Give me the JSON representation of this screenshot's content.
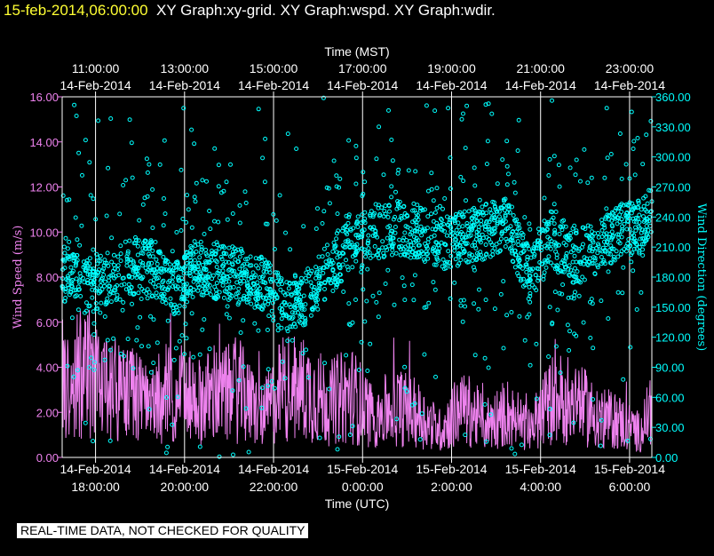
{
  "header": {
    "timestamp": "15-feb-2014,06:00:00",
    "graphs": "XY Graph:xy-grid.  XY Graph:wspd.  XY Graph:wdir."
  },
  "notice": "REAL-TIME DATA, NOT CHECKED FOR QUALITY",
  "colors": {
    "wspd": "#ee82ee",
    "wdir": "#00ffff",
    "timestamp": "#ffff33",
    "grid": "#ffffff"
  },
  "chart_data": {
    "type": "scatter",
    "x_top_label": "Time (MST)",
    "x_bottom_label": "Time (UTC)",
    "y_left_label": "Wind Speed (m/s)",
    "y_right_label": "Wind Direction (degrees)",
    "x_range_hours_utc": [
      17.25,
      30.5
    ],
    "top_ticks": [
      {
        "time": "11:00:00",
        "date": "14-Feb-2014"
      },
      {
        "time": "13:00:00",
        "date": "14-Feb-2014"
      },
      {
        "time": "15:00:00",
        "date": "14-Feb-2014"
      },
      {
        "time": "17:00:00",
        "date": "14-Feb-2014"
      },
      {
        "time": "19:00:00",
        "date": "14-Feb-2014"
      },
      {
        "time": "21:00:00",
        "date": "14-Feb-2014"
      },
      {
        "time": "23:00:00",
        "date": "14-Feb-2014"
      }
    ],
    "bottom_ticks": [
      {
        "date": "14-Feb-2014",
        "time": "18:00:00"
      },
      {
        "date": "14-Feb-2014",
        "time": "20:00:00"
      },
      {
        "date": "14-Feb-2014",
        "time": "22:00:00"
      },
      {
        "date": "15-Feb-2014",
        "time": "0:00:00"
      },
      {
        "date": "15-Feb-2014",
        "time": "2:00:00"
      },
      {
        "date": "15-Feb-2014",
        "time": "4:00:00"
      },
      {
        "date": "15-Feb-2014",
        "time": "6:00:00"
      }
    ],
    "y_left_ticks": [
      "0.00",
      "2.00",
      "4.00",
      "6.00",
      "8.00",
      "10.00",
      "12.00",
      "14.00",
      "16.00"
    ],
    "y_right_ticks": [
      "0.00",
      "30.00",
      "60.00",
      "90.00",
      "120.00",
      "150.00",
      "180.00",
      "210.00",
      "240.00",
      "270.00",
      "300.00",
      "330.00",
      "360.00"
    ],
    "ylim_left": [
      0,
      16
    ],
    "ylim_right": [
      0,
      360
    ],
    "series": [
      {
        "name": "Wind Speed (m/s)",
        "mark": "line",
        "x_hours_utc": [
          17.25,
          17.75,
          18.25,
          18.75,
          19.25,
          19.75,
          20.25,
          20.75,
          21.25,
          21.75,
          22.25,
          22.75,
          23.25,
          23.75,
          24.25,
          24.75,
          25.25,
          25.75,
          26.25,
          26.75,
          27.25,
          27.75,
          28.25,
          28.75,
          29.25,
          29.75,
          30.25,
          30.5
        ],
        "values": [
          3.0,
          3.8,
          3.0,
          2.8,
          2.5,
          3.0,
          2.6,
          2.7,
          2.9,
          1.8,
          3.2,
          3.0,
          2.4,
          2.8,
          1.8,
          2.3,
          1.9,
          1.2,
          2.3,
          1.5,
          2.0,
          1.2,
          2.6,
          2.6,
          1.8,
          1.6,
          1.1,
          2.4
        ]
      },
      {
        "name": "Wind Direction (degrees)",
        "mark": "points",
        "x_hours_utc": [
          17.25,
          17.75,
          18.25,
          18.75,
          19.25,
          19.75,
          20.25,
          20.75,
          21.25,
          21.75,
          22.25,
          22.75,
          23.25,
          23.75,
          24.25,
          24.75,
          25.25,
          25.75,
          26.25,
          26.75,
          27.25,
          27.75,
          28.25,
          28.75,
          29.25,
          29.75,
          30.25,
          30.5
        ],
        "values": [
          185,
          170,
          180,
          190,
          190,
          165,
          190,
          185,
          180,
          175,
          150,
          160,
          190,
          210,
          225,
          230,
          225,
          215,
          220,
          225,
          235,
          180,
          220,
          200,
          210,
          225,
          230,
          240
        ]
      }
    ]
  }
}
